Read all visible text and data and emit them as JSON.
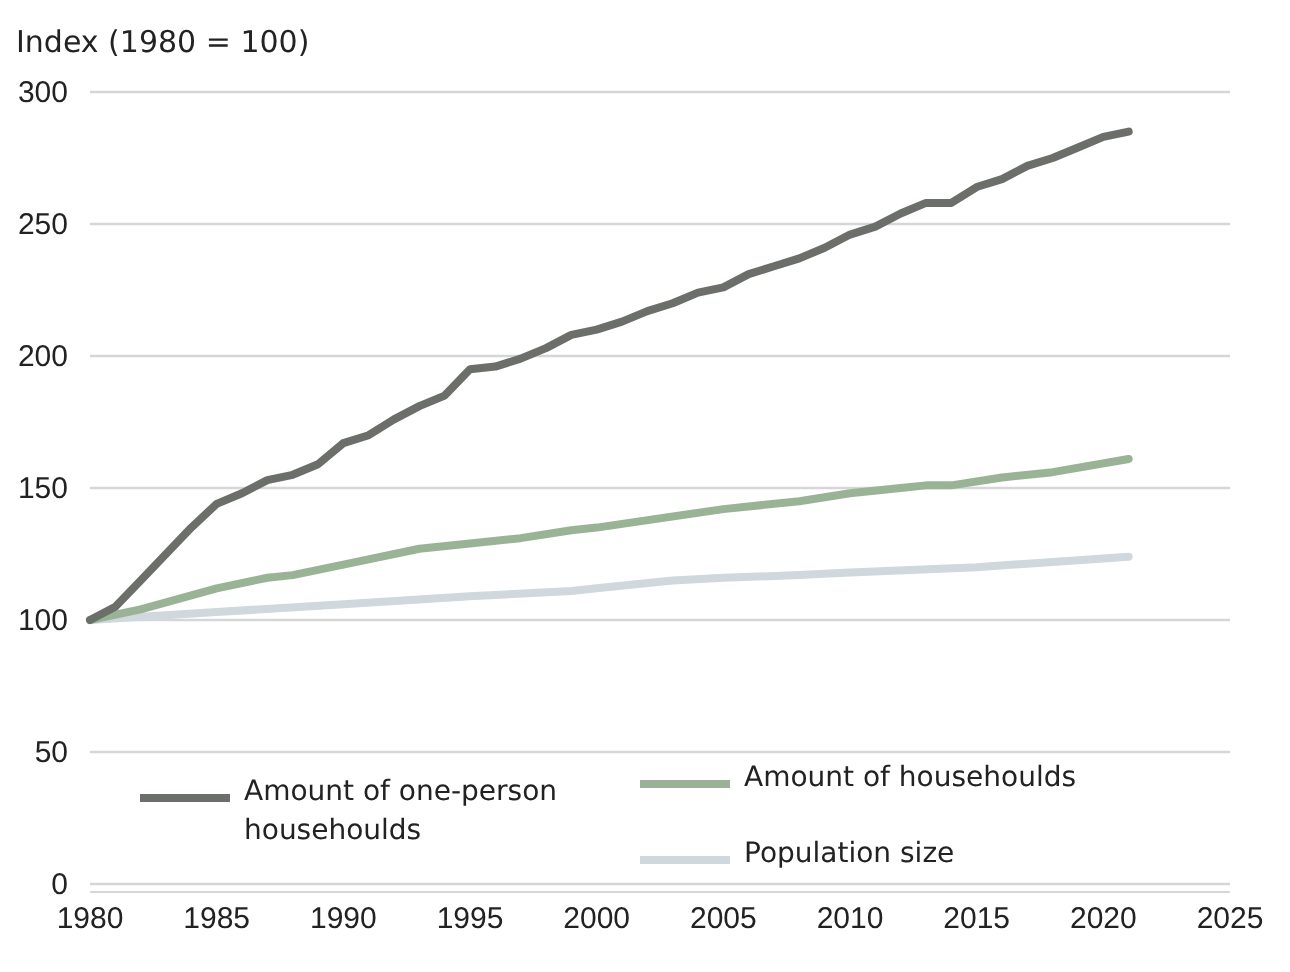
{
  "chart_data": {
    "type": "line",
    "ylabel": "Index (1980 = 100)",
    "xlim": [
      1980,
      2025
    ],
    "xticks": [
      1980,
      1985,
      1990,
      1995,
      2000,
      2005,
      2010,
      2015,
      2020,
      2025
    ],
    "ylim": [
      0,
      300
    ],
    "yticks": [
      0,
      50,
      100,
      150,
      200,
      250,
      300
    ],
    "grid": "y",
    "legend": "bottom",
    "line_style": "solid",
    "series": [
      {
        "name": "Amount of one-person househoulds",
        "color": "#6b6e69",
        "x": [
          1980,
          1981,
          1982,
          1983,
          1984,
          1985,
          1986,
          1987,
          1988,
          1989,
          1990,
          1991,
          1992,
          1993,
          1994,
          1995,
          1996,
          1997,
          1998,
          1999,
          2000,
          2001,
          2002,
          2003,
          2004,
          2005,
          2006,
          2007,
          2008,
          2009,
          2010,
          2011,
          2012,
          2013,
          2014,
          2015,
          2016,
          2017,
          2018,
          2019,
          2020,
          2021
        ],
        "values": [
          100,
          105,
          115,
          125,
          135,
          144,
          148,
          153,
          155,
          159,
          167,
          170,
          176,
          181,
          185,
          195,
          196,
          199,
          203,
          208,
          210,
          213,
          217,
          220,
          224,
          226,
          231,
          234,
          237,
          241,
          246,
          249,
          254,
          258,
          258,
          264,
          267,
          272,
          275,
          279,
          283,
          285
        ]
      },
      {
        "name": "Amount of househoulds",
        "color": "#9ab397",
        "x": [
          1980,
          1982,
          1985,
          1987,
          1988,
          1990,
          1993,
          1995,
          1997,
          1999,
          2000,
          2005,
          2008,
          2010,
          2012,
          2013,
          2014,
          2016,
          2018,
          2021
        ],
        "values": [
          100,
          104,
          112,
          116,
          117,
          121,
          127,
          129,
          131,
          134,
          135,
          142,
          145,
          148,
          150,
          151,
          151,
          154,
          156,
          161
        ]
      },
      {
        "name": "Population size",
        "color": "#cfd8dc",
        "x": [
          1980,
          1985,
          1990,
          1995,
          1999,
          2000,
          2003,
          2005,
          2008,
          2010,
          2015,
          2018,
          2021
        ],
        "values": [
          100,
          103,
          106,
          109,
          111,
          112,
          115,
          116,
          117,
          118,
          120,
          122,
          124
        ]
      }
    ]
  }
}
